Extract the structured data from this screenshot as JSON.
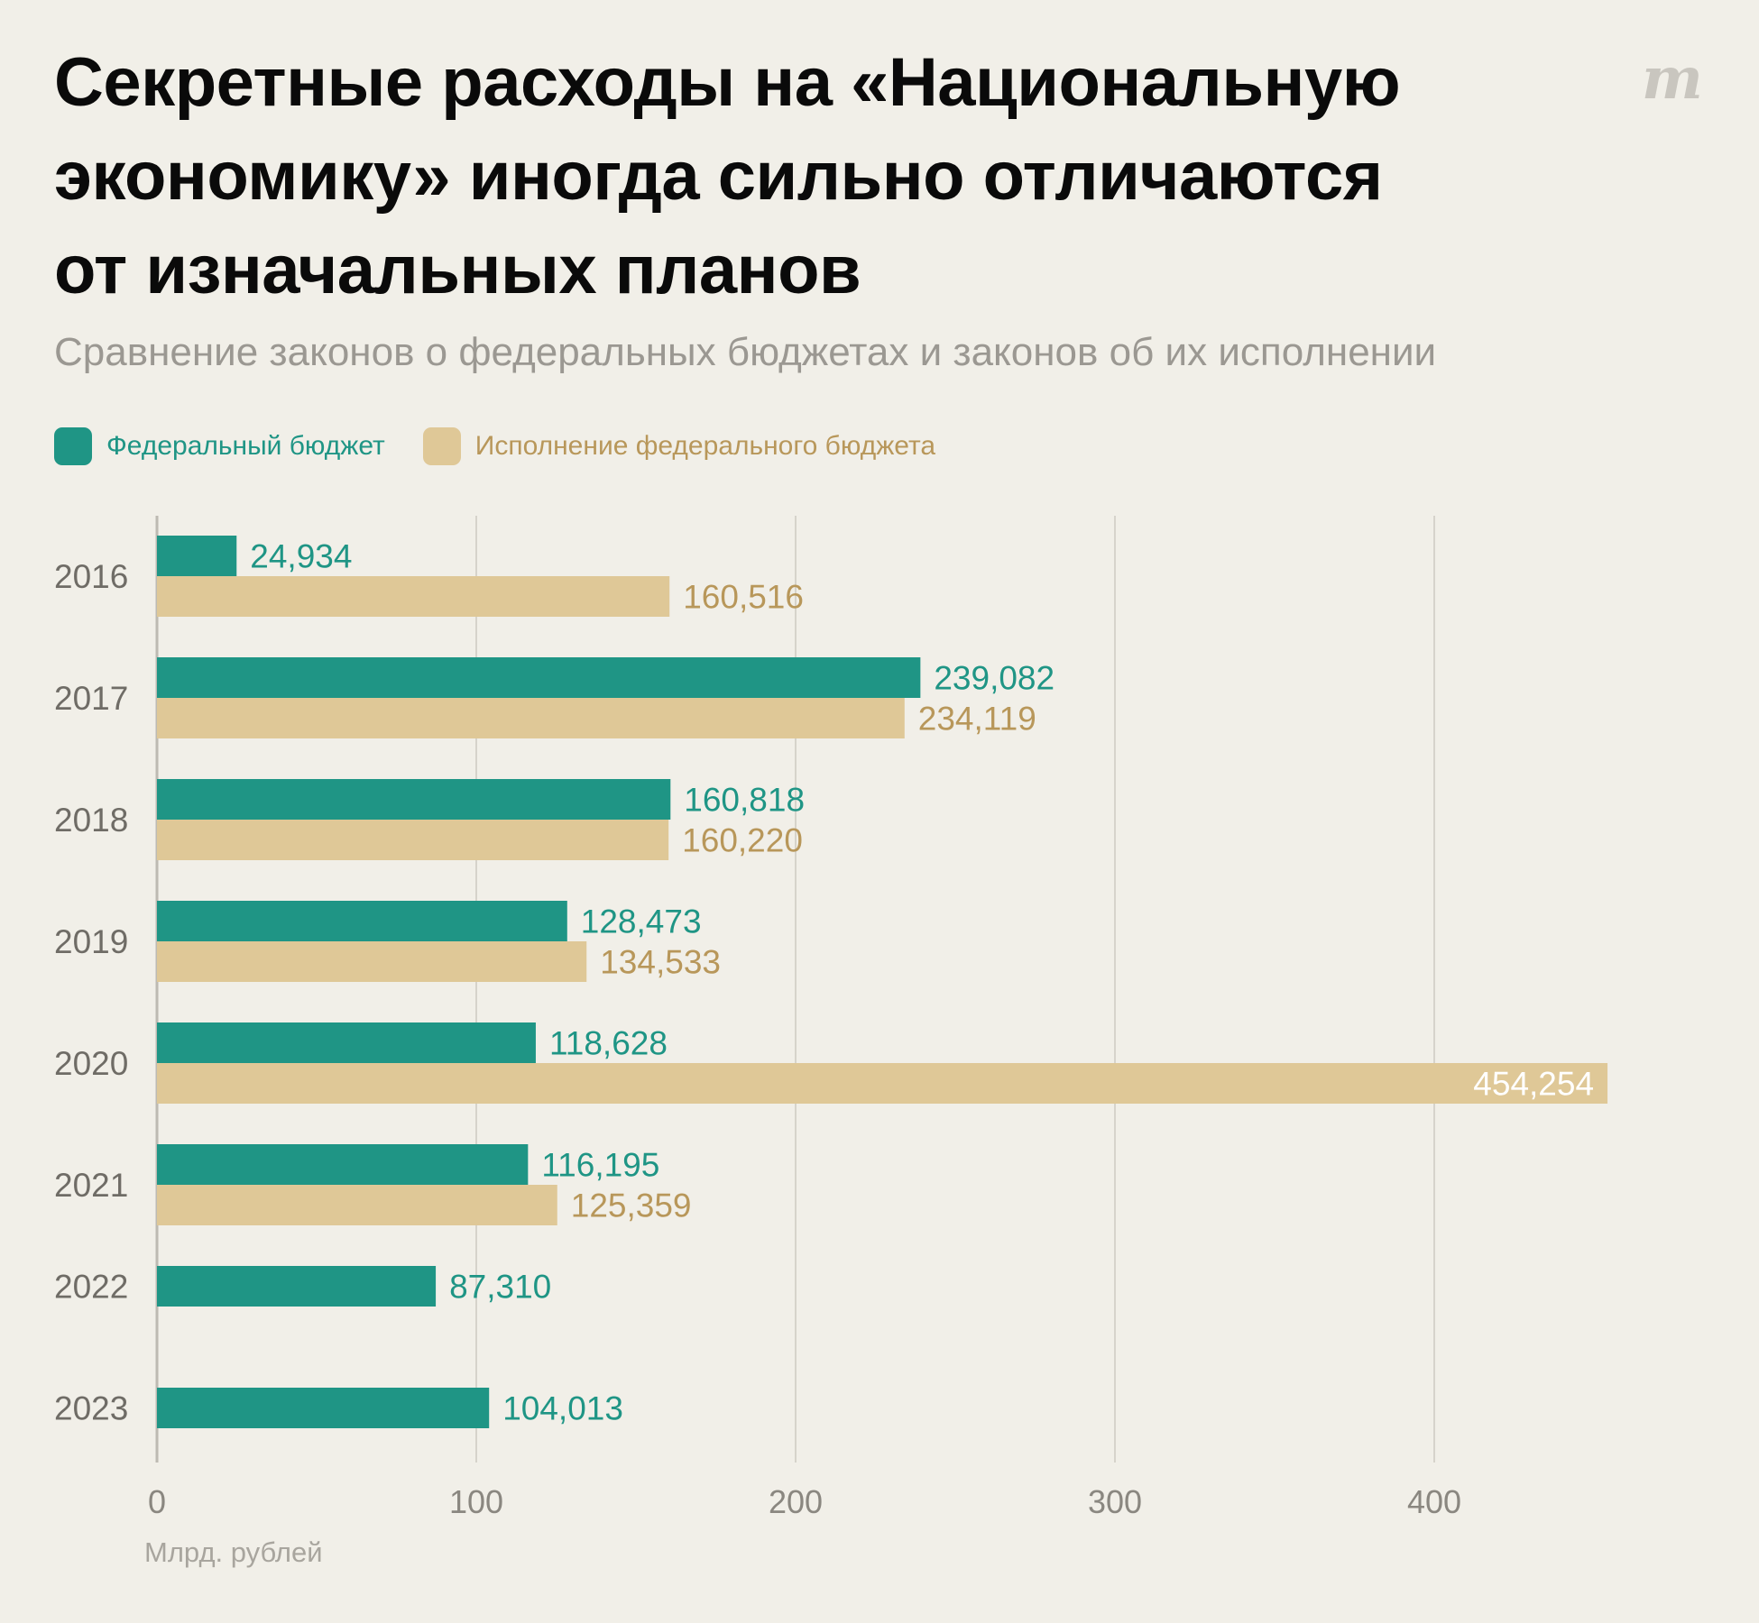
{
  "header": {
    "title_lines": [
      "Секретные расходы на «Национальную",
      "экономику» иногда сильно отличаются",
      "от изначальных планов"
    ],
    "subtitle": "Сравнение законов о федеральных бюджетах и законов об их исполнении",
    "logo": "m"
  },
  "colors": {
    "budget": "#1f9585",
    "execution": "#dfc897",
    "execution_text": "#b8975a",
    "grid": "#d6d3cb",
    "axis": "#bdbab2"
  },
  "chart_data": {
    "type": "bar",
    "orientation": "horizontal",
    "categories": [
      "2016",
      "2017",
      "2018",
      "2019",
      "2020",
      "2021",
      "2022",
      "2023"
    ],
    "series": [
      {
        "name": "Федеральный бюджет",
        "values": [
          24.934,
          239.082,
          160.818,
          128.473,
          118.628,
          116.195,
          87.31,
          104.013
        ],
        "labels": [
          "24,934",
          "239,082",
          "160,818",
          "128,473",
          "118,628",
          "116,195",
          "87,310",
          "104,013"
        ]
      },
      {
        "name": "Исполнение федерального бюджета",
        "values": [
          160.516,
          234.119,
          160.22,
          134.533,
          454.254,
          125.359,
          null,
          null
        ],
        "labels": [
          "160,516",
          "234,119",
          "160,220",
          "134,533",
          "454,254",
          "125,359",
          null,
          null
        ]
      }
    ],
    "xlim": [
      0,
      460
    ],
    "xticks": [
      0,
      100,
      200,
      300,
      400
    ],
    "xlabel": "Млрд. рублей",
    "grid": true,
    "legend_position": "top-left"
  }
}
